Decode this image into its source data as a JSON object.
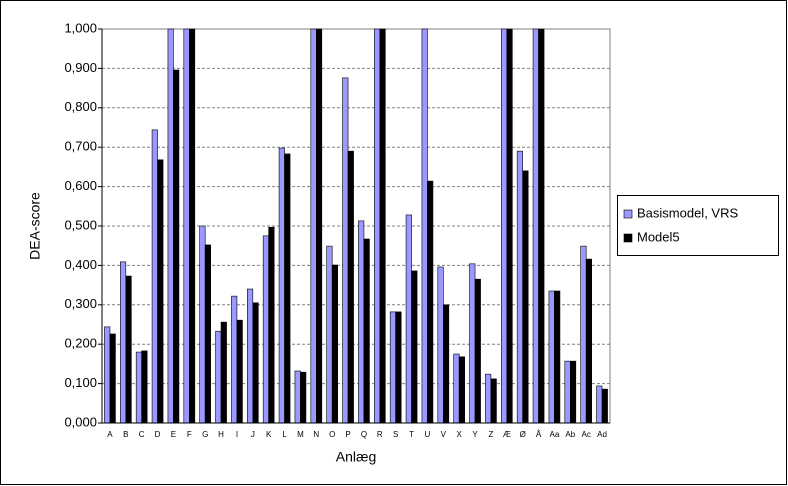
{
  "chart_data": {
    "type": "bar",
    "x_label": "Anlæg",
    "y_label": "DEA-score",
    "categories": [
      "A",
      "B",
      "C",
      "D",
      "E",
      "F",
      "G",
      "H",
      "I",
      "J",
      "K",
      "L",
      "M",
      "N",
      "O",
      "P",
      "Q",
      "R",
      "S",
      "T",
      "U",
      "V",
      "X",
      "Y",
      "Z",
      "Æ",
      "Ø",
      "Å",
      "Aa",
      "Ab",
      "Ac",
      "Ad"
    ],
    "series": [
      {
        "name": "Basismodel, VRS",
        "color": "#9999ff",
        "values": [
          0.244,
          0.409,
          0.18,
          0.744,
          1.0,
          1.0,
          0.5,
          0.233,
          0.322,
          0.34,
          0.475,
          0.698,
          0.132,
          1.0,
          0.449,
          0.876,
          0.513,
          1.0,
          0.282,
          0.528,
          1.0,
          0.396,
          0.175,
          0.404,
          0.124,
          1.0,
          0.69,
          1.0,
          0.335,
          0.157,
          0.449,
          0.094
        ]
      },
      {
        "name": "Model5",
        "color": "#000000",
        "values": [
          0.226,
          0.373,
          0.183,
          0.668,
          0.896,
          1.0,
          0.452,
          0.256,
          0.261,
          0.305,
          0.497,
          0.683,
          0.129,
          1.0,
          0.401,
          0.69,
          0.467,
          1.0,
          0.282,
          0.386,
          0.614,
          0.3,
          0.168,
          0.365,
          0.112,
          1.0,
          0.64,
          1.0,
          0.335,
          0.157,
          0.416,
          0.086
        ]
      }
    ],
    "ylim": [
      0,
      1
    ],
    "yticks": [
      {
        "value": 0,
        "label": "0,000"
      },
      {
        "value": 0.1,
        "label": "0,100"
      },
      {
        "value": 0.2,
        "label": "0,200"
      },
      {
        "value": 0.3,
        "label": "0,300"
      },
      {
        "value": 0.4,
        "label": "0,400"
      },
      {
        "value": 0.5,
        "label": "0,500"
      },
      {
        "value": 0.6,
        "label": "0,600"
      },
      {
        "value": 0.7,
        "label": "0,700"
      },
      {
        "value": 0.8,
        "label": "0,800"
      },
      {
        "value": 0.9,
        "label": "0,900"
      },
      {
        "value": 1,
        "label": "1,000"
      }
    ],
    "grid": true,
    "legend": "right"
  }
}
